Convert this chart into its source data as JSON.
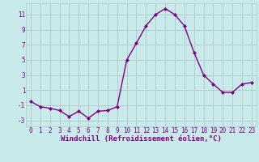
{
  "x": [
    0,
    1,
    2,
    3,
    4,
    5,
    6,
    7,
    8,
    9,
    10,
    11,
    12,
    13,
    14,
    15,
    16,
    17,
    18,
    19,
    20,
    21,
    22,
    23
  ],
  "y": [
    -0.5,
    -1.2,
    -1.4,
    -1.7,
    -2.5,
    -1.8,
    -2.7,
    -1.8,
    -1.7,
    -1.2,
    5.0,
    7.2,
    9.5,
    11.0,
    11.8,
    11.0,
    9.5,
    6.0,
    3.0,
    1.8,
    0.7,
    0.7,
    1.8,
    2.0
  ],
  "line_color": "#800080",
  "marker": "D",
  "marker_size": 2,
  "linewidth": 1.0,
  "xlabel": "Windchill (Refroidissement éolien,°C)",
  "xlabel_fontsize": 6.5,
  "background_color": "#c8eaea",
  "grid_color": "#b0c8c8",
  "yticks": [
    -3,
    -1,
    1,
    3,
    5,
    7,
    9,
    11
  ],
  "xticks": [
    0,
    1,
    2,
    3,
    4,
    5,
    6,
    7,
    8,
    9,
    10,
    11,
    12,
    13,
    14,
    15,
    16,
    17,
    18,
    19,
    20,
    21,
    22,
    23
  ],
  "xlim": [
    -0.5,
    23.5
  ],
  "ylim": [
    -3.8,
    12.5
  ],
  "tick_fontsize": 5.5,
  "label_color": "#800080"
}
